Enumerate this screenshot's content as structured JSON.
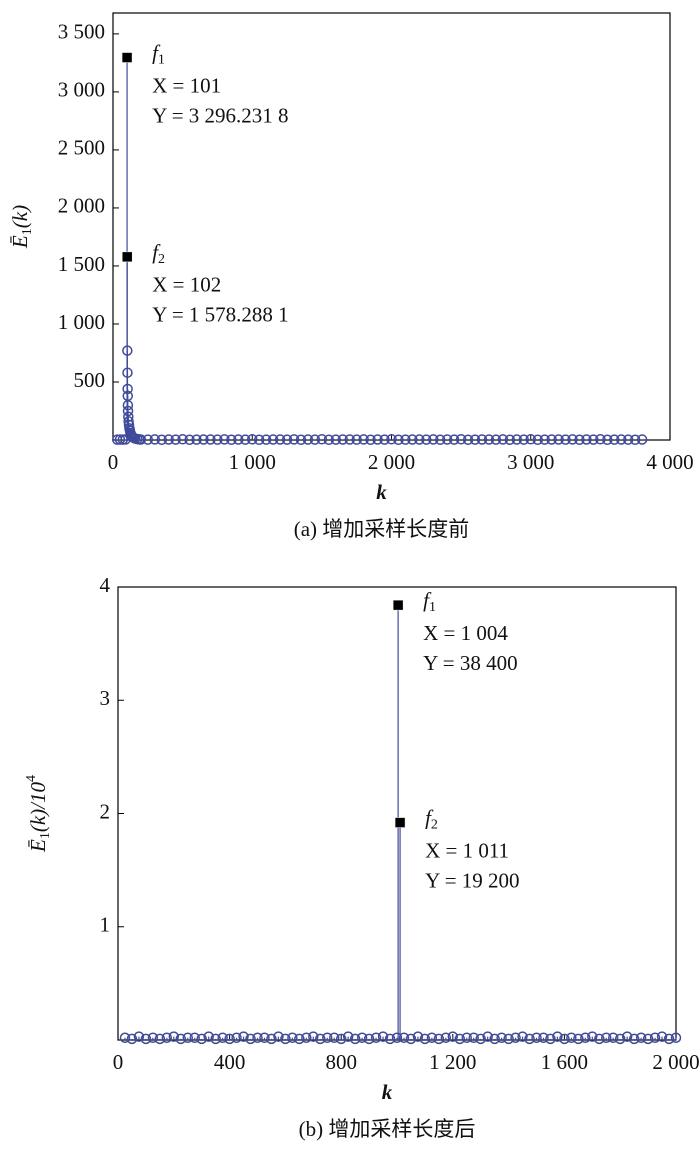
{
  "chart_data": [
    {
      "type": "stem",
      "xlabel": "k",
      "ylabel": {
        "main": "Ē",
        "sub": "1",
        "tail": "(k)"
      },
      "caption": "(a) 增加采样长度前",
      "xlim": [
        0,
        4000
      ],
      "ylim": [
        0,
        3680
      ],
      "xticks": [
        0,
        {
          "value": 1000,
          "label": "1 000"
        },
        {
          "value": 2000,
          "label": "2 000"
        },
        {
          "value": 3000,
          "label": "3 000"
        },
        {
          "value": 4000,
          "label": "4 000"
        }
      ],
      "yticks": [
        500,
        {
          "value": 1000,
          "label": "1 000"
        },
        {
          "value": 1500,
          "label": "1 500"
        },
        {
          "value": 2000,
          "label": "2 000"
        },
        {
          "value": 2500,
          "label": "2 500"
        },
        {
          "value": 3000,
          "label": "3 000"
        },
        {
          "value": 3500,
          "label": "3 500"
        }
      ],
      "series": [
        {
          "color": "#3f4a9a",
          "marker": "circle",
          "x": [
            30,
            50,
            70,
            90,
            103,
            104,
            105,
            106,
            107,
            108,
            110,
            112,
            115,
            118,
            122,
            126,
            130,
            135,
            140,
            150,
            160,
            175,
            190,
            200,
            250,
            300,
            350,
            400,
            450,
            500,
            550,
            600,
            650,
            700,
            750,
            800,
            850,
            900,
            950,
            1000,
            1050,
            1100,
            1150,
            1200,
            1250,
            1300,
            1350,
            1400,
            1450,
            1500,
            1550,
            1600,
            1650,
            1700,
            1750,
            1800,
            1850,
            1900,
            1950,
            2000,
            2050,
            2100,
            2150,
            2200,
            2250,
            2300,
            2350,
            2400,
            2450,
            2500,
            2550,
            2600,
            2650,
            2700,
            2750,
            2800,
            2850,
            2900,
            2950,
            3000,
            3050,
            3100,
            3150,
            3200,
            3250,
            3300,
            3350,
            3400,
            3450,
            3500,
            3550,
            3600,
            3650,
            3700,
            3750,
            3800
          ],
          "values": [
            3,
            4,
            3,
            5,
            770,
            580,
            440,
            380,
            300,
            250,
            200,
            160,
            130,
            100,
            80,
            60,
            45,
            35,
            25,
            18,
            12,
            8,
            5,
            4,
            3,
            5,
            2,
            4,
            3,
            6,
            2,
            3,
            4,
            4,
            3,
            5,
            2,
            4,
            3,
            6,
            2,
            3,
            4,
            4,
            3,
            5,
            2,
            4,
            3,
            6,
            2,
            3,
            4,
            4,
            3,
            5,
            2,
            4,
            3,
            6,
            2,
            3,
            4,
            4,
            3,
            5,
            2,
            4,
            3,
            6,
            2,
            3,
            4,
            4,
            3,
            5,
            2,
            4,
            3,
            6,
            2,
            3,
            4,
            4,
            3,
            5,
            2,
            4,
            3,
            6,
            2,
            3,
            4,
            3,
            2,
            4
          ]
        },
        {
          "color": "#000000",
          "marker": "square",
          "x": [
            101,
            102
          ],
          "values": [
            3296.2318,
            1578.2881
          ],
          "annotations": [
            {
              "name": "f",
              "sub": "1",
              "lines": [
                "X = 101",
                "Y = 3 296.231 8"
              ]
            },
            {
              "name": "f",
              "sub": "2",
              "lines": [
                "X = 102",
                "Y = 1 578.288 1"
              ]
            }
          ]
        }
      ]
    },
    {
      "type": "stem",
      "xlabel": "k",
      "ylabel": {
        "main": "Ē",
        "sub": "1",
        "tail": "(k)/10",
        "sup": "4"
      },
      "caption": "(b) 增加采样长度后",
      "xlim": [
        0,
        2000
      ],
      "ylim": [
        0,
        4
      ],
      "xticks": [
        0,
        400,
        800,
        {
          "value": 1200,
          "label": "1 200"
        },
        {
          "value": 1600,
          "label": "1 600"
        },
        {
          "value": 2000,
          "label": "2 000"
        }
      ],
      "yticks": [
        1,
        2,
        3,
        4
      ],
      "series": [
        {
          "color": "#3f4a9a",
          "marker": "circle",
          "x": [
            25,
            50,
            75,
            100,
            125,
            150,
            175,
            200,
            225,
            250,
            275,
            300,
            325,
            350,
            375,
            400,
            425,
            450,
            475,
            500,
            525,
            550,
            575,
            600,
            625,
            650,
            675,
            700,
            725,
            750,
            775,
            800,
            825,
            850,
            875,
            900,
            925,
            950,
            975,
            1000,
            1025,
            1050,
            1075,
            1100,
            1125,
            1150,
            1175,
            1200,
            1225,
            1250,
            1275,
            1300,
            1325,
            1350,
            1375,
            1400,
            1425,
            1450,
            1475,
            1500,
            1525,
            1550,
            1575,
            1600,
            1625,
            1650,
            1675,
            1700,
            1725,
            1750,
            1775,
            1800,
            1825,
            1850,
            1875,
            1900,
            1925,
            1950,
            1975,
            2000
          ],
          "values": [
            0.02,
            0.01,
            0.03,
            0.01,
            0.02,
            0.01,
            0.02,
            0.03,
            0.01,
            0.02,
            0.02,
            0.01,
            0.03,
            0.01,
            0.02,
            0.01,
            0.02,
            0.03,
            0.01,
            0.02,
            0.02,
            0.01,
            0.03,
            0.01,
            0.02,
            0.01,
            0.02,
            0.03,
            0.01,
            0.02,
            0.02,
            0.01,
            0.03,
            0.01,
            0.02,
            0.01,
            0.02,
            0.03,
            0.01,
            0.02,
            0.02,
            0.01,
            0.03,
            0.01,
            0.02,
            0.01,
            0.02,
            0.03,
            0.01,
            0.02,
            0.02,
            0.01,
            0.03,
            0.01,
            0.02,
            0.01,
            0.02,
            0.03,
            0.01,
            0.02,
            0.02,
            0.01,
            0.03,
            0.01,
            0.02,
            0.01,
            0.02,
            0.03,
            0.01,
            0.02,
            0.02,
            0.01,
            0.03,
            0.01,
            0.02,
            0.01,
            0.02,
            0.03,
            0.01,
            0.02
          ]
        },
        {
          "color": "#000000",
          "marker": "square",
          "x": [
            1004,
            1011
          ],
          "values": [
            3.84,
            1.92
          ],
          "annotations": [
            {
              "name": "f",
              "sub": "1",
              "lines": [
                "X = 1 004",
                "Y = 38 400"
              ]
            },
            {
              "name": "f",
              "sub": "2",
              "lines": [
                "X = 1 011",
                "Y = 19 200"
              ]
            }
          ]
        }
      ]
    }
  ]
}
